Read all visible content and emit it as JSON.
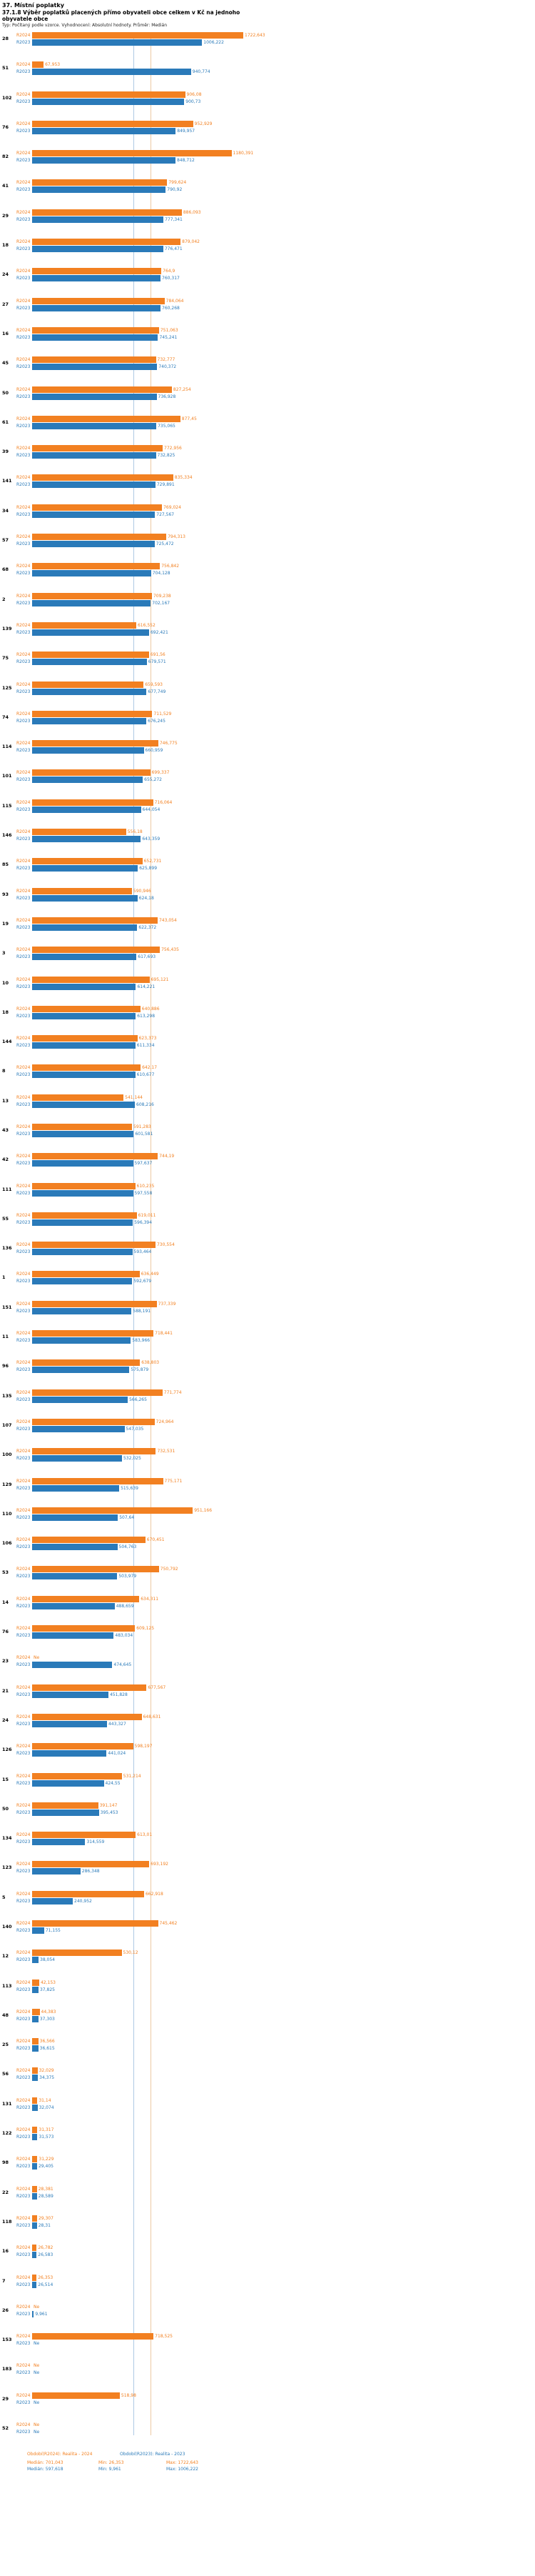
{
  "header": {
    "title": "37. Místní poplatky",
    "subtitle": "37.1.8 Výběr poplatků placených přímo obyvateli obce celkem  v Kč na jednoho obyvatele obce",
    "type_line": "Typ: Počítaný podle vzorce. Vyhodnocení: Absolutní hodnoty. Průměr: Medián"
  },
  "footer": {
    "period_2024": "Období(R2024): Realita - 2024",
    "period_2023": "Období(R2023): Realita - 2023",
    "stats_2024": {
      "median": "Medián: 701,043",
      "min": "Min: 26,353",
      "max": "Max: 1722,643"
    },
    "stats_2023": {
      "median": "Medián: 597,618",
      "min": "Min: 9,961",
      "max": "Max: 1006,222"
    }
  },
  "colors": {
    "r2024": "#f28021",
    "r2023": "#2a7ab9",
    "median_line_2024": "#ecc9a4",
    "median_line_2023": "#aec9e4"
  },
  "chart_data": {
    "type": "bar",
    "orientation": "horizontal",
    "title": "37.1.8 Výběr poplatků placených přímo obyvateli obce celkem v Kč na jednoho obyvatele obce",
    "value_unit": "Kč na jednoho obyvatele obce",
    "axis_max": 1250,
    "no_data_text": "Ne",
    "medians": {
      "r2024": 701.043,
      "r2023": 597.618
    },
    "legend": [
      "R2024",
      "R2023"
    ],
    "categories": [
      "28",
      "51",
      "102",
      "76",
      "82",
      "41",
      "29",
      "18",
      "24",
      "27",
      "16",
      "45",
      "50",
      "61",
      "39",
      "141",
      "34",
      "57",
      "68",
      "2",
      "139",
      "75",
      "125",
      "74",
      "114",
      "101",
      "115",
      "146",
      "85",
      "93",
      "19",
      "3",
      "10",
      "18",
      "144",
      "8",
      "13",
      "43",
      "42",
      "111",
      "55",
      "136",
      "1",
      "151",
      "11",
      "96",
      "135",
      "107",
      "100",
      "129",
      "110",
      "106",
      "53",
      "14",
      "76",
      "23",
      "21",
      "24",
      "126",
      "15",
      "50",
      "134",
      "123",
      "5",
      "140",
      "12",
      "113",
      "48",
      "25",
      "56",
      "131",
      "122",
      "98",
      "22",
      "118",
      "16",
      "7",
      "26",
      "153",
      "183",
      "29",
      "52"
    ],
    "series": [
      {
        "name": "R2024",
        "values": [
          "1722,643",
          "67,953",
          "906,08",
          "952,929",
          "1180,391",
          "799,624",
          "886,093",
          "879,042",
          "764,9",
          "784,064",
          "751,063",
          "732,777",
          "827,254",
          "877,45",
          "772,956",
          "835,334",
          "769,024",
          "794,313",
          "756,842",
          "709,238",
          "616,552",
          "691,56",
          "659,593",
          "711,529",
          "746,775",
          "699,337",
          "716,064",
          "556,18",
          "652,731",
          "590,946",
          "743,054",
          "756,435",
          "695,121",
          "640,886",
          "623,373",
          "642,17",
          "541,144",
          "591,283",
          "744,19",
          "610,235",
          "619,011",
          "730,554",
          "636,449",
          "737,339",
          "718,441",
          "638,803",
          "771,774",
          "724,964",
          "732,531",
          "775,171",
          "951,166",
          "670,451",
          "750,792",
          "634,311",
          "609,125",
          "Ne",
          "677,567",
          "648,631",
          "598,197",
          "531,214",
          "391,147",
          "613,01",
          "693,192",
          "662,918",
          "745,462",
          "530,12",
          "42,153",
          "44,383",
          "36,566",
          "32,029",
          "31,14",
          "31,317",
          "31,229",
          "28,381",
          "29,307",
          "26,782",
          "26,353",
          "Ne",
          "718,525",
          "Ne",
          "518,98",
          "Ne"
        ]
      },
      {
        "name": "R2023",
        "values": [
          "1006,222",
          "940,774",
          "900,73",
          "849,957",
          "848,712",
          "790,92",
          "777,341",
          "776,471",
          "760,317",
          "760,268",
          "745,241",
          "740,372",
          "736,928",
          "735,065",
          "732,825",
          "729,891",
          "727,567",
          "725,472",
          "704,128",
          "702,167",
          "692,421",
          "679,571",
          "677,749",
          "676,245",
          "660,959",
          "655,272",
          "644,054",
          "643,359",
          "625,899",
          "624,18",
          "622,372",
          "617,693",
          "614,221",
          "613,298",
          "611,334",
          "610,677",
          "608,216",
          "601,581",
          "597,637",
          "597,558",
          "596,394",
          "593,464",
          "592,679",
          "588,191",
          "583,966",
          "575,879",
          "566,265",
          "547,035",
          "532,025",
          "515,639",
          "507,64",
          "504,763",
          "503,979",
          "488,659",
          "483,034",
          "474,645",
          "451,828",
          "443,327",
          "441,024",
          "424,55",
          "395,453",
          "314,559",
          "286,348",
          "240,952",
          "71,155",
          "38,054",
          "37,825",
          "37,303",
          "36,615",
          "34,375",
          "32,074",
          "31,573",
          "29,405",
          "28,589",
          "28,31",
          "26,583",
          "26,514",
          "9,961",
          "Ne",
          "Ne",
          "Ne",
          "Ne"
        ]
      }
    ]
  }
}
